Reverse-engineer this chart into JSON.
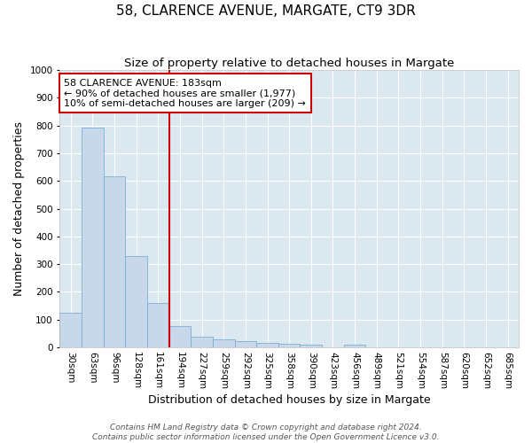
{
  "title": "58, CLARENCE AVENUE, MARGATE, CT9 3DR",
  "subtitle": "Size of property relative to detached houses in Margate",
  "xlabel": "Distribution of detached houses by size in Margate",
  "ylabel": "Number of detached properties",
  "categories": [
    "30sqm",
    "63sqm",
    "96sqm",
    "128sqm",
    "161sqm",
    "194sqm",
    "227sqm",
    "259sqm",
    "292sqm",
    "325sqm",
    "358sqm",
    "390sqm",
    "423sqm",
    "456sqm",
    "489sqm",
    "521sqm",
    "554sqm",
    "587sqm",
    "620sqm",
    "652sqm",
    "685sqm"
  ],
  "values": [
    125,
    793,
    617,
    330,
    160,
    78,
    38,
    28,
    22,
    15,
    12,
    8,
    0,
    10,
    0,
    0,
    0,
    0,
    0,
    0,
    0
  ],
  "bar_color": "#c8d8ea",
  "bar_edge_color": "#7ab0d4",
  "vline_x": 4.5,
  "vline_color": "#cc0000",
  "annotation_line1": "58 CLARENCE AVENUE: 183sqm",
  "annotation_line2": "← 90% of detached houses are smaller (1,977)",
  "annotation_line3": "10% of semi-detached houses are larger (209) →",
  "annotation_box_color": "#cc0000",
  "ylim": [
    0,
    1000
  ],
  "yticks": [
    0,
    100,
    200,
    300,
    400,
    500,
    600,
    700,
    800,
    900,
    1000
  ],
  "footer_line1": "Contains HM Land Registry data © Crown copyright and database right 2024.",
  "footer_line2": "Contains public sector information licensed under the Open Government Licence v3.0.",
  "fig_bg_color": "#ffffff",
  "bg_color": "#dce8f0",
  "grid_color": "#ffffff",
  "title_fontsize": 11,
  "subtitle_fontsize": 9.5,
  "axis_label_fontsize": 9,
  "tick_fontsize": 7.5,
  "footer_fontsize": 6.5,
  "annotation_fontsize": 8
}
